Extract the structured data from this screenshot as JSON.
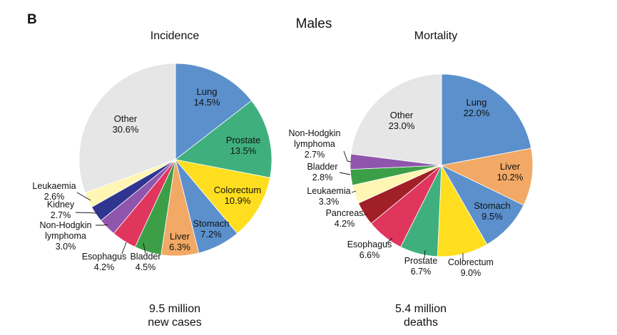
{
  "panel_letter": "B",
  "figure_title": "Males",
  "colors": {
    "Lung": "#5b90cc",
    "Prostate": "#3fb07d",
    "Colorectum": "#ffde1f",
    "Stomach": "#5b90cc",
    "Liver": "#f2a965",
    "Bladder": "#3c9f48",
    "Esophagus": "#e0365e",
    "Non-Hodgkin lymphoma": "#9055ad",
    "Kidney": "#2f3591",
    "Leukaemia": "#fff6b3",
    "Pancreas": "#a11f27",
    "Other": "#e6e6e6"
  },
  "chart_data": [
    {
      "type": "pie",
      "title": "Incidence",
      "total_line1": "9.5 million",
      "total_line2": "new cases",
      "start_angle_deg": 0,
      "direction": "clockwise",
      "slices": [
        {
          "name": "Lung",
          "value": 14.5,
          "label": [
            "Lung",
            "14.5%"
          ]
        },
        {
          "name": "Prostate",
          "value": 13.5,
          "label": [
            "Prostate",
            "13.5%"
          ]
        },
        {
          "name": "Colorectum",
          "value": 10.9,
          "label": [
            "Colorectum",
            "10.9%"
          ]
        },
        {
          "name": "Stomach",
          "value": 7.2,
          "label": [
            "Stomach",
            "7.2%"
          ]
        },
        {
          "name": "Liver",
          "value": 6.3,
          "label": [
            "Liver",
            "6.3%"
          ]
        },
        {
          "name": "Bladder",
          "value": 4.5,
          "label": [
            "Bladder",
            "4.5%"
          ]
        },
        {
          "name": "Esophagus",
          "value": 4.2,
          "label": [
            "Esophagus",
            "4.2%"
          ]
        },
        {
          "name": "Non-Hodgkin lymphoma",
          "value": 3.0,
          "label": [
            "Non-Hodgkin",
            "lymphoma",
            "3.0%"
          ]
        },
        {
          "name": "Kidney",
          "value": 2.7,
          "label": [
            "Kidney",
            "2.7%"
          ]
        },
        {
          "name": "Leukaemia",
          "value": 2.6,
          "label": [
            "Leukaemia",
            "2.6%"
          ]
        },
        {
          "name": "Other",
          "value": 30.6,
          "label": [
            "Other",
            "30.6%"
          ]
        }
      ]
    },
    {
      "type": "pie",
      "title": "Mortality",
      "total_line1": "5.4 million",
      "total_line2": "deaths",
      "start_angle_deg": 0,
      "direction": "clockwise",
      "slices": [
        {
          "name": "Lung",
          "value": 22.0,
          "label": [
            "Lung",
            "22.0%"
          ]
        },
        {
          "name": "Liver",
          "value": 10.2,
          "label": [
            "Liver",
            "10.2%"
          ]
        },
        {
          "name": "Stomach",
          "value": 9.5,
          "label": [
            "Stomach",
            "9.5%"
          ]
        },
        {
          "name": "Colorectum",
          "value": 9.0,
          "label": [
            "Colorectum",
            "9.0%"
          ]
        },
        {
          "name": "Prostate",
          "value": 6.7,
          "label": [
            "Prostate",
            "6.7%"
          ]
        },
        {
          "name": "Esophagus",
          "value": 6.6,
          "label": [
            "Esophagus",
            "6.6%"
          ]
        },
        {
          "name": "Pancreas",
          "value": 4.2,
          "label": [
            "Pancreas",
            "4.2%"
          ]
        },
        {
          "name": "Leukaemia",
          "value": 3.3,
          "label": [
            "Leukaemia",
            "3.3%"
          ]
        },
        {
          "name": "Bladder",
          "value": 2.8,
          "label": [
            "Bladder",
            "2.8%"
          ]
        },
        {
          "name": "Non-Hodgkin lymphoma",
          "value": 2.7,
          "label": [
            "Non-Hodgkin",
            "lymphoma",
            "2.7%"
          ]
        },
        {
          "name": "Other",
          "value": 23.0,
          "label": [
            "Other",
            "23.0%"
          ]
        }
      ]
    }
  ]
}
